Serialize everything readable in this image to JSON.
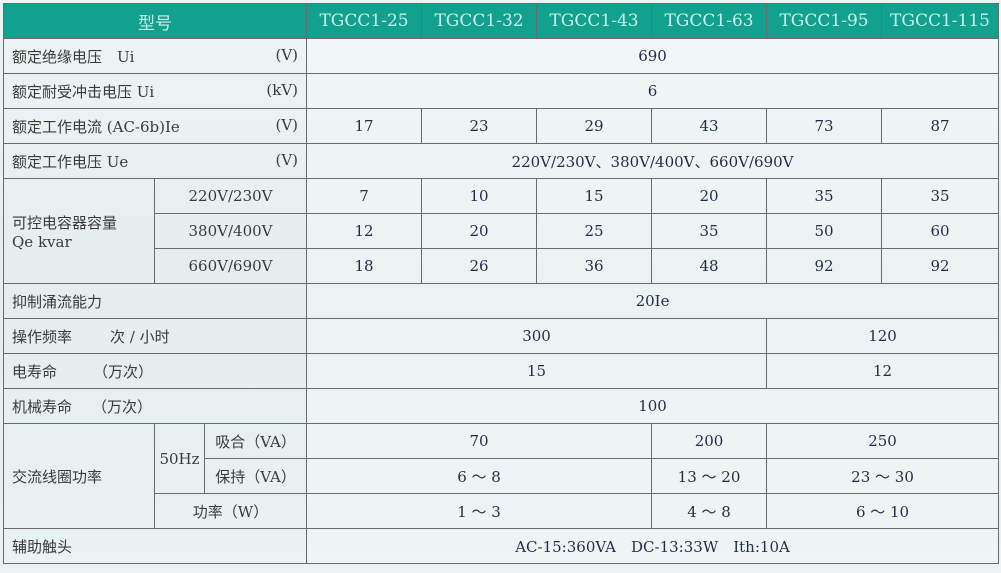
{
  "header": {
    "model_label": "型号",
    "models": [
      "TGCC1-25",
      "TGCC1-32",
      "TGCC1-43",
      "TGCC1-63",
      "TGCC1-95",
      "TGCC1-115"
    ]
  },
  "rows": {
    "ui": {
      "label": "额定绝缘电压　Ui",
      "unit": "(V)",
      "value": "690"
    },
    "uimp": {
      "label": "额定耐受冲击电压 Ui",
      "unit": "(kV)",
      "value": "6"
    },
    "ie": {
      "label": "额定工作电流 (AC-6b)Ie",
      "unit": "(V)",
      "values": [
        "17",
        "23",
        "29",
        "43",
        "73",
        "87"
      ]
    },
    "ue": {
      "label": "额定工作电压 Ue",
      "unit": "(V)",
      "value": "220V/230V、380V/400V、660V/690V"
    },
    "cap": {
      "label": "可控电容器容量",
      "label2": "Qe kvar",
      "sub": [
        {
          "voltage": "220V/230V",
          "values": [
            "7",
            "10",
            "15",
            "20",
            "35",
            "35"
          ]
        },
        {
          "voltage": "380V/400V",
          "values": [
            "12",
            "20",
            "25",
            "35",
            "50",
            "60"
          ]
        },
        {
          "voltage": "660V/690V",
          "values": [
            "18",
            "26",
            "36",
            "48",
            "92",
            "92"
          ]
        }
      ]
    },
    "inrush": {
      "label": "抑制涌流能力",
      "value": "20Ie"
    },
    "freq": {
      "label": "操作频率",
      "unit": "次 / 小时",
      "values": [
        "300",
        "120"
      ]
    },
    "elec_life": {
      "label": "电寿命",
      "unit": "（万次）",
      "values": [
        "15",
        "12"
      ]
    },
    "mech_life": {
      "label": "机械寿命",
      "unit": "（万次）",
      "value": "100"
    },
    "coil": {
      "label": "交流线圈功率",
      "freq": "50Hz",
      "pickup": {
        "label": "吸合（VA）",
        "values": [
          "70",
          "200",
          "250"
        ]
      },
      "hold": {
        "label": "保持（VA）",
        "values": [
          "6 ～ 8",
          "13 ～ 20",
          "23 ～ 30"
        ]
      },
      "power": {
        "label": "功率（W）",
        "values": [
          "1 ～ 3",
          "4 ～ 8",
          "6 ～ 10"
        ]
      }
    },
    "aux": {
      "label": "辅助触头",
      "value": "AC-15:360VA　DC-13:33W　Ith:10A"
    }
  }
}
